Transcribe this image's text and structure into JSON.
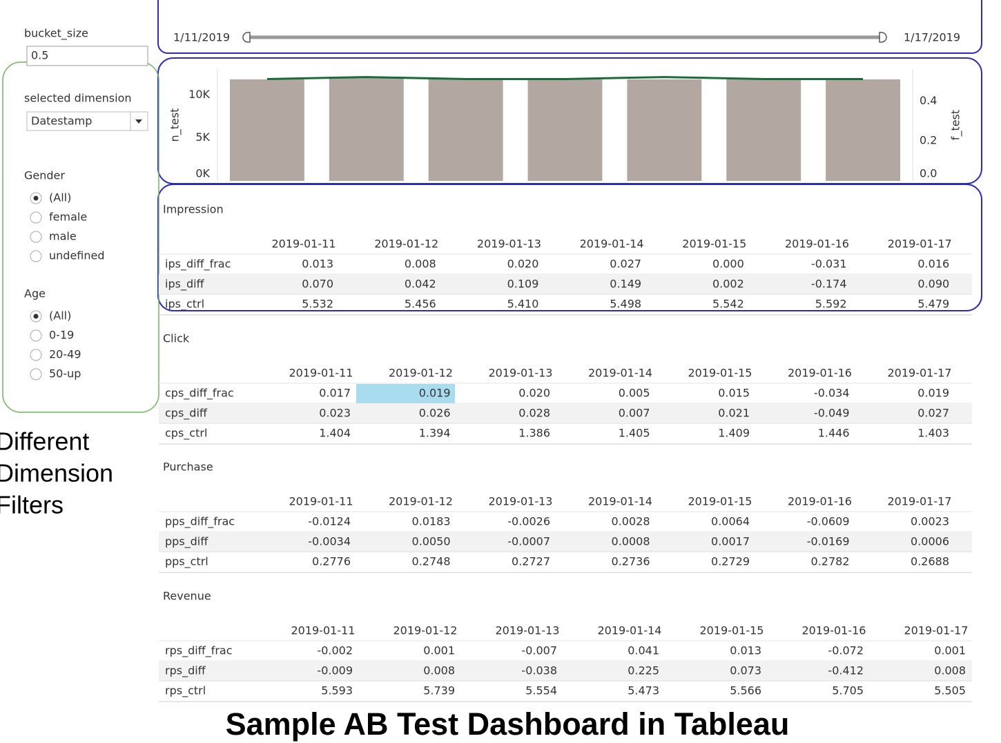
{
  "sidebar": {
    "bucket_label": "bucket_size",
    "bucket_value": "0.5",
    "dimension_label": "selected dimension",
    "dimension_value": "Datestamp",
    "filters": [
      {
        "label": "Gender",
        "options": [
          "(All)",
          "female",
          "male",
          "undefined"
        ],
        "selected": 0
      },
      {
        "label": "Age",
        "options": [
          "(All)",
          "0-19",
          "20-49",
          "50-up"
        ],
        "selected": 0
      }
    ]
  },
  "annotation": [
    "Different",
    "Dimension",
    "Filters"
  ],
  "slider": {
    "start": "1/11/2019",
    "end": "1/17/2019"
  },
  "chart_data": {
    "type": "bar",
    "categories": [
      null,
      null,
      null,
      null,
      null,
      null,
      null
    ],
    "ylabel": "n_test",
    "y2label": "f_test",
    "ylim": [
      0,
      13000
    ],
    "yticks": [
      {
        "value": 0,
        "label": "0K"
      },
      {
        "value": 5000,
        "label": "5K"
      },
      {
        "value": 10000,
        "label": "10K"
      }
    ],
    "y2lim": [
      0,
      0.56
    ],
    "y2ticks": [
      {
        "value": 0,
        "label": "0.0"
      },
      0.2,
      0.4
    ],
    "series": [
      {
        "color": "#b3a7a2",
        "values": [
          11800,
          12100,
          11800,
          11800,
          11800,
          11800,
          11800
        ]
      },
      {
        "type": "line",
        "axis": "y2",
        "color": "#1c6a3a",
        "values": [
          0.51,
          0.52,
          0.51,
          0.51,
          0.52,
          0.51,
          0.51
        ]
      }
    ]
  },
  "tables": [
    {
      "title": "Impression",
      "columns": [
        "2019-01-11",
        "2019-01-12",
        "2019-01-13",
        "2019-01-14",
        "2019-01-15",
        "2019-01-16",
        "2019-01-17"
      ],
      "rows": [
        {
          "label": "ips_diff_frac",
          "values": [
            "0.013",
            "0.008",
            "0.020",
            "0.027",
            "0.000",
            "-0.031",
            "0.016"
          ]
        },
        {
          "label": "ips_diff",
          "values": [
            "0.070",
            "0.042",
            "0.109",
            "0.149",
            "0.002",
            "-0.174",
            "0.090"
          ]
        },
        {
          "label": "ips_ctrl",
          "values": [
            "5.532",
            "5.456",
            "5.410",
            "5.498",
            "5.542",
            "5.592",
            "5.479"
          ]
        }
      ]
    },
    {
      "title": "Click",
      "columns": [
        "2019-01-11",
        "2019-01-12",
        "2019-01-13",
        "2019-01-14",
        "2019-01-15",
        "2019-01-16",
        "2019-01-17"
      ],
      "rows": [
        {
          "label": "cps_diff_frac",
          "values": [
            "0.017",
            "0.019",
            "0.020",
            "0.005",
            "0.015",
            "-0.034",
            "0.019"
          ]
        },
        {
          "label": "cps_diff",
          "values": [
            "0.023",
            "0.026",
            "0.028",
            "0.007",
            "0.021",
            "-0.049",
            "0.027"
          ]
        },
        {
          "label": "cps_ctrl",
          "values": [
            "1.404",
            "1.394",
            "1.386",
            "1.405",
            "1.409",
            "1.446",
            "1.403"
          ]
        }
      ]
    },
    {
      "title": "Purchase",
      "columns": [
        "2019-01-11",
        "2019-01-12",
        "2019-01-13",
        "2019-01-14",
        "2019-01-15",
        "2019-01-16",
        "2019-01-17"
      ],
      "rows": [
        {
          "label": "pps_diff_frac",
          "values": [
            "-0.0124",
            "0.0183",
            "-0.0026",
            "0.0028",
            "0.0064",
            "-0.0609",
            "0.0023"
          ]
        },
        {
          "label": "pps_diff",
          "values": [
            "-0.0034",
            "0.0050",
            "-0.0007",
            "0.0008",
            "0.0017",
            "-0.0169",
            "0.0006"
          ]
        },
        {
          "label": "pps_ctrl",
          "values": [
            "0.2776",
            "0.2748",
            "0.2727",
            "0.2736",
            "0.2729",
            "0.2782",
            "0.2688"
          ]
        }
      ]
    },
    {
      "title": "Revenue",
      "columns": [
        "2019-01-11",
        "2019-01-12",
        "2019-01-13",
        "2019-01-14",
        "2019-01-15",
        "2019-01-16",
        "2019-01-17"
      ],
      "rows": [
        {
          "label": "rps_diff_frac",
          "values": [
            "-0.002",
            "0.001",
            "-0.007",
            "0.041",
            "0.013",
            "-0.072",
            "0.001"
          ]
        },
        {
          "label": "rps_diff",
          "values": [
            "-0.009",
            "0.008",
            "-0.038",
            "0.225",
            "0.073",
            "-0.412",
            "0.008"
          ]
        },
        {
          "label": "rps_ctrl",
          "values": [
            "5.593",
            "5.739",
            "5.554",
            "5.473",
            "5.566",
            "5.705",
            "5.505"
          ]
        }
      ]
    }
  ],
  "footer": "Sample AB Test Dashboard in Tableau"
}
